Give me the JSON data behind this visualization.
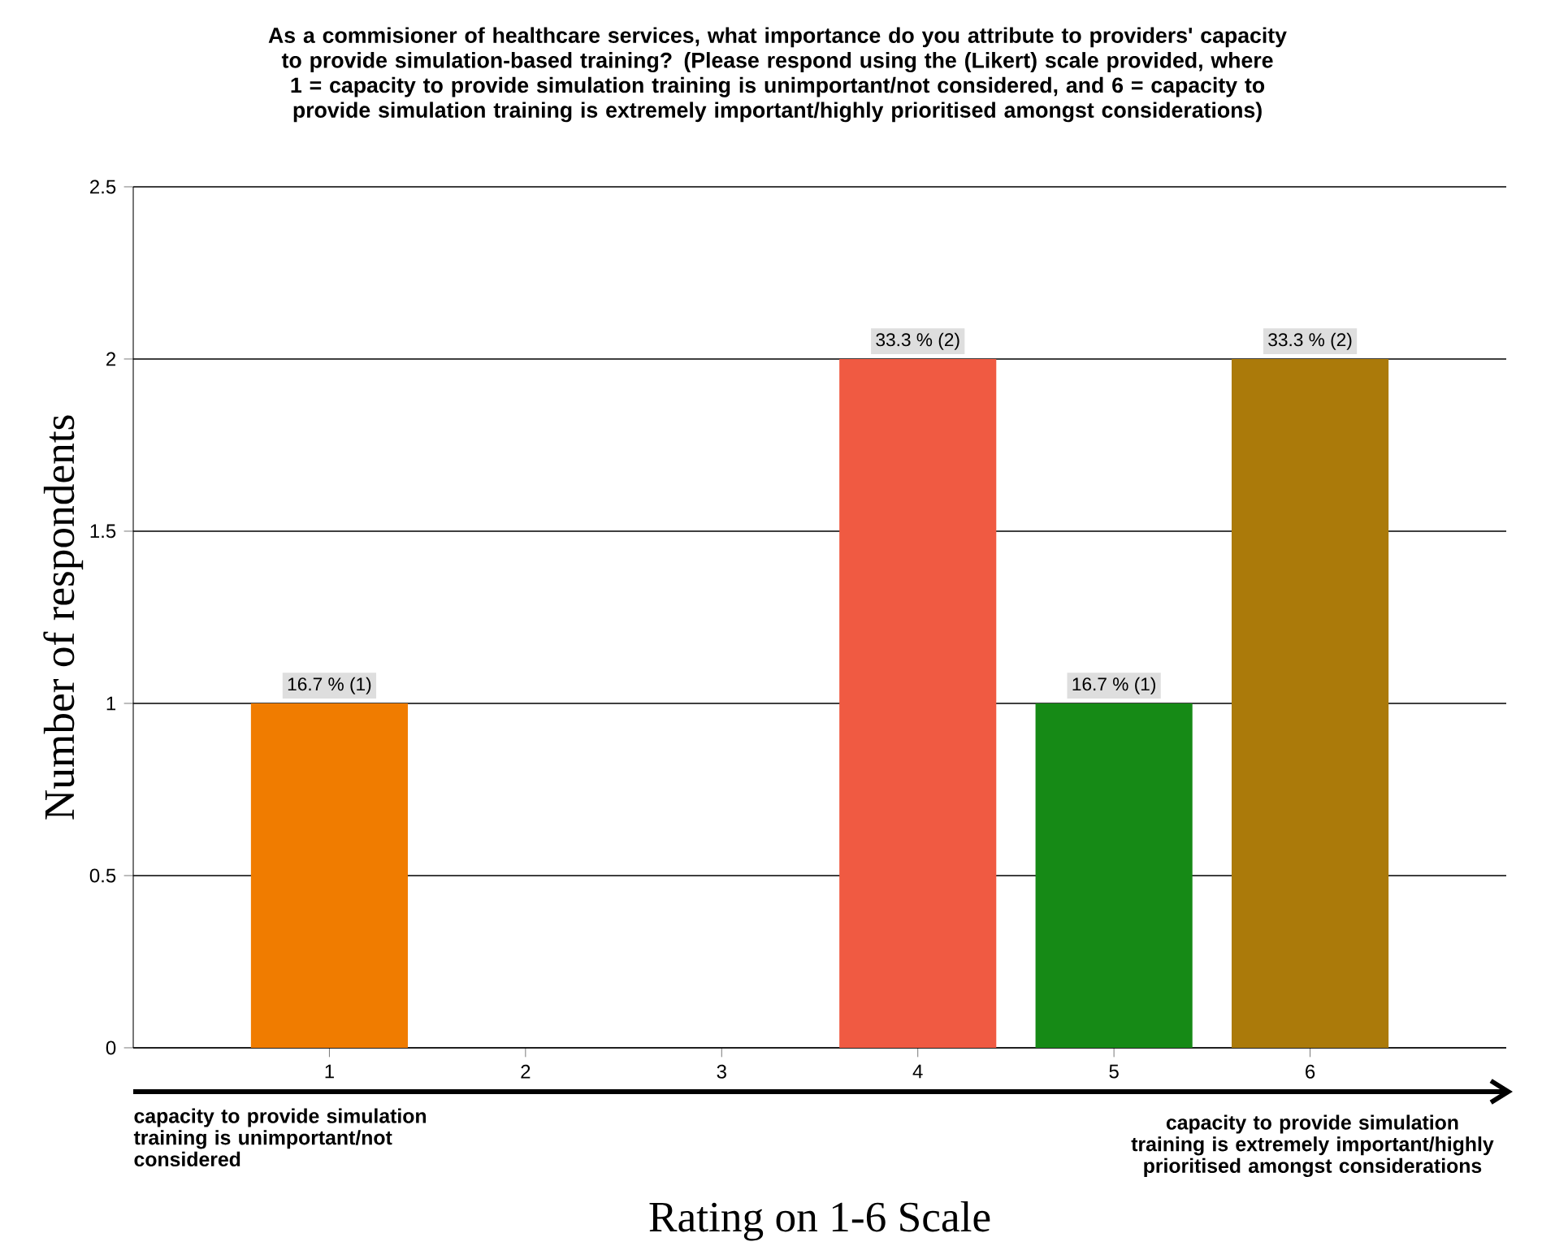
{
  "chart_data": {
    "type": "bar",
    "title": "As a commisioner of healthcare services, what importance do you attribute to providers' capacity to provide simulation-based training?  (Please respond using the (Likert) scale provided, where 1 = capacity to provide simulation training is unimportant/not considered, and 6 = capacity to provide simulation training is extremely important/highly prioritised amongst considerations)",
    "xlabel": "Rating on 1-6 Scale",
    "ylabel": "Number of respondents",
    "categories": [
      "1",
      "2",
      "3",
      "4",
      "5",
      "6"
    ],
    "values": [
      1,
      0,
      0,
      2,
      1,
      2
    ],
    "colors": [
      "#f07c00",
      null,
      null,
      "#f05a42",
      "#168a16",
      "#ab7a0a"
    ],
    "value_labels": [
      "16.7 % (1)",
      null,
      null,
      "33.3 % (2)",
      "16.7 % (1)",
      "33.3 % (2)"
    ],
    "ylim": [
      0,
      2.5
    ],
    "yticks": [
      0,
      0.5,
      1,
      1.5,
      2,
      2.5
    ],
    "grid": "y",
    "annotations": [
      "capacity  to provide simulation training is unimportant/not considered",
      "capacity to provide simulation training is extremely important/highly prioritised amongst considerations"
    ]
  }
}
